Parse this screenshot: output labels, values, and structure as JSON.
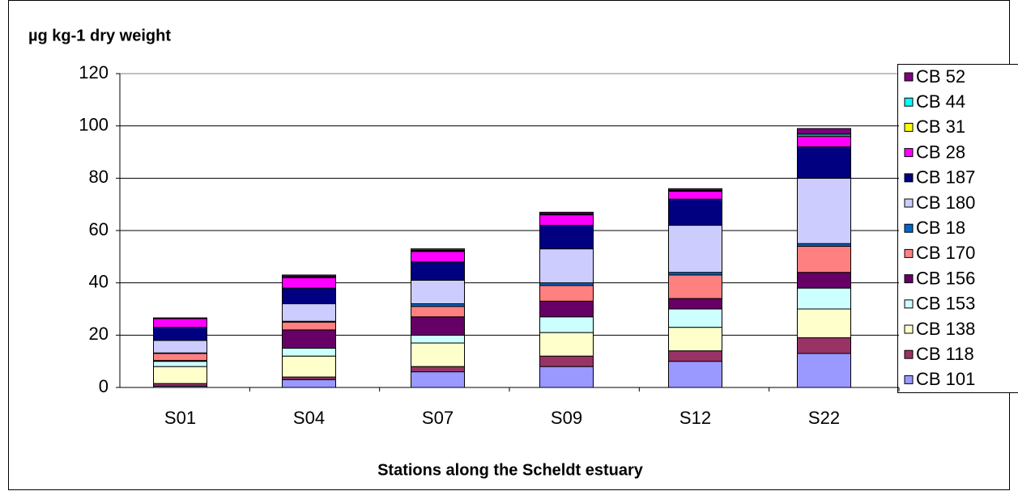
{
  "chart_data": {
    "type": "bar",
    "stacked": true,
    "title": "µg kg-1 dry weight",
    "x_label": "Stations along the Scheldt estuary",
    "categories": [
      "S01",
      "S04",
      "S07",
      "S09",
      "S12",
      "S22"
    ],
    "ylim": [
      0,
      120
    ],
    "yticks": [
      0,
      20,
      40,
      60,
      80,
      100,
      120
    ],
    "grid": true,
    "legend": "right",
    "series": [
      {
        "name": "CB 101",
        "color": "#9999ff",
        "values": [
          0.5,
          3,
          6,
          8,
          10,
          13
        ]
      },
      {
        "name": "CB 118",
        "color": "#993366",
        "values": [
          1,
          1,
          2,
          4,
          4,
          6
        ]
      },
      {
        "name": "CB 138",
        "color": "#ffffcc",
        "values": [
          6.5,
          8,
          9,
          9,
          9,
          11
        ]
      },
      {
        "name": "CB 153",
        "color": "#ccffff",
        "values": [
          2,
          3,
          3,
          6,
          7,
          8
        ]
      },
      {
        "name": "CB 156",
        "color": "#660066",
        "values": [
          0.3,
          7,
          7,
          6,
          4,
          6
        ]
      },
      {
        "name": "CB 170",
        "color": "#ff8080",
        "values": [
          2.7,
          3,
          4,
          6,
          9,
          10
        ]
      },
      {
        "name": "CB 18",
        "color": "#0066cc",
        "values": [
          0.2,
          0.3,
          1,
          1,
          1,
          1
        ]
      },
      {
        "name": "CB 180",
        "color": "#ccccff",
        "values": [
          4.8,
          6.7,
          9,
          13,
          18,
          25
        ]
      },
      {
        "name": "CB 187",
        "color": "#000080",
        "values": [
          5,
          6,
          7,
          9,
          10,
          12
        ]
      },
      {
        "name": "CB 28",
        "color": "#ff00ff",
        "values": [
          3.3,
          4,
          4,
          4,
          3,
          4
        ]
      },
      {
        "name": "CB 31",
        "color": "#ffff00",
        "values": [
          0,
          0.2,
          0.2,
          0.2,
          0.2,
          0.5
        ]
      },
      {
        "name": "CB 44",
        "color": "#00ffff",
        "values": [
          0,
          0.2,
          0.2,
          0.2,
          0.2,
          0.5
        ]
      },
      {
        "name": "CB 52",
        "color": "#800080",
        "values": [
          0.3,
          0.6,
          0.6,
          0.6,
          0.6,
          2
        ]
      }
    ]
  }
}
